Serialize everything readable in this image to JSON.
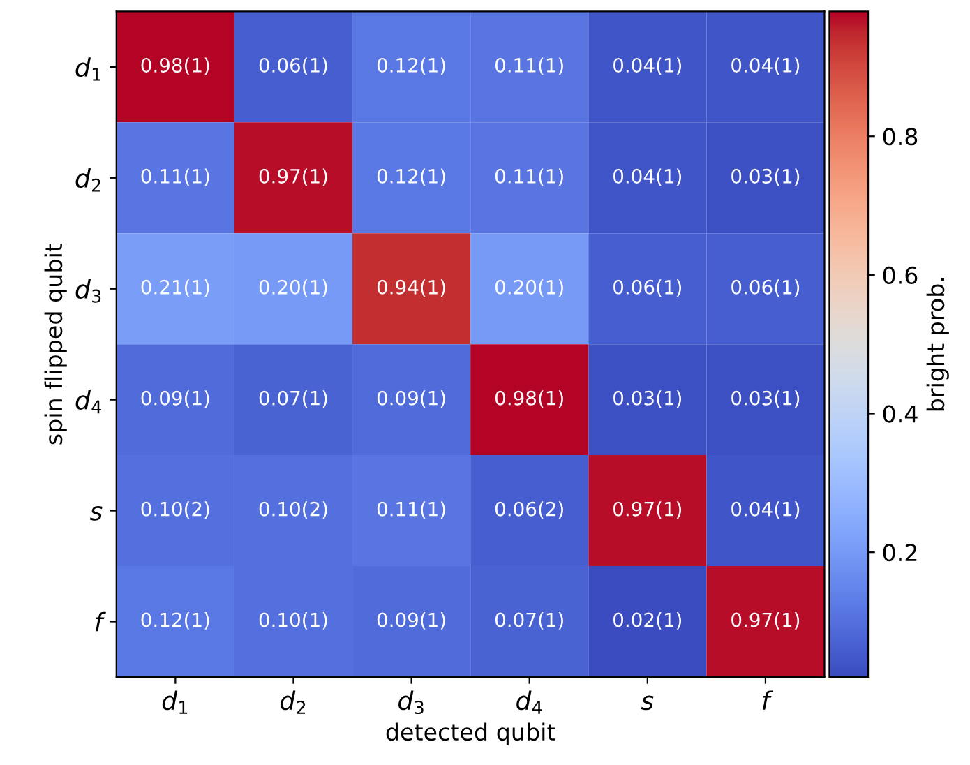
{
  "chart_data": {
    "type": "heatmap",
    "xlabel": "detected qubit",
    "ylabel": "spin flipped qubit",
    "clabel": "bright prob.",
    "categories": [
      "d$_{1}$",
      "d$_{2}$",
      "d$_{3}$",
      "d$_{4}$",
      "s",
      "f"
    ],
    "y_categories": [
      "d$_{1}$",
      "d$_{2}$",
      "d$_{3}$",
      "d$_{4}$",
      "s",
      "f"
    ],
    "cells": [
      [
        0.98,
        0.06,
        0.12,
        0.11,
        0.04,
        0.04
      ],
      [
        0.11,
        0.97,
        0.12,
        0.11,
        0.04,
        0.03
      ],
      [
        0.21,
        0.2,
        0.94,
        0.2,
        0.06,
        0.06
      ],
      [
        0.09,
        0.07,
        0.09,
        0.98,
        0.03,
        0.03
      ],
      [
        0.1,
        0.1,
        0.11,
        0.06,
        0.97,
        0.04
      ],
      [
        0.12,
        0.1,
        0.09,
        0.07,
        0.02,
        0.97
      ]
    ],
    "cell_labels": [
      [
        "0.98(1)",
        "0.06(1)",
        "0.12(1)",
        "0.11(1)",
        "0.04(1)",
        "0.04(1)"
      ],
      [
        "0.11(1)",
        "0.97(1)",
        "0.12(1)",
        "0.11(1)",
        "0.04(1)",
        "0.03(1)"
      ],
      [
        "0.21(1)",
        "0.20(1)",
        "0.94(1)",
        "0.20(1)",
        "0.06(1)",
        "0.06(1)"
      ],
      [
        "0.09(1)",
        "0.07(1)",
        "0.09(1)",
        "0.98(1)",
        "0.03(1)",
        "0.03(1)"
      ],
      [
        "0.10(2)",
        "0.10(2)",
        "0.11(1)",
        "0.06(2)",
        "0.97(1)",
        "0.04(1)"
      ],
      [
        "0.12(1)",
        "0.10(1)",
        "0.09(1)",
        "0.07(1)",
        "0.02(1)",
        "0.97(1)"
      ]
    ],
    "clim": [
      0.02,
      0.98
    ],
    "cticks": [
      0.2,
      0.4,
      0.6,
      0.8
    ]
  }
}
